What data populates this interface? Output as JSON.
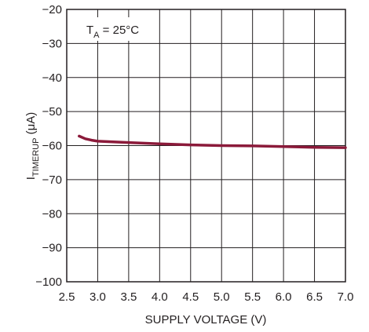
{
  "chart_data": {
    "type": "line",
    "xlabel": "SUPPLY VOLTAGE (V)",
    "ylabel_main": "I",
    "ylabel_sub": "TIMERUP",
    "ylabel_unit": " (μA)",
    "annotation_main": "T",
    "annotation_sub": "A",
    "annotation_rest": " = 25°C",
    "xlim": [
      2.5,
      7.0
    ],
    "ylim": [
      -100,
      -20
    ],
    "x_ticks": [
      2.5,
      3.0,
      3.5,
      4.0,
      4.5,
      5.0,
      5.5,
      6.0,
      6.5,
      7.0
    ],
    "x_tick_labels": [
      "2.5",
      "3.0",
      "3.5",
      "4.0",
      "4.5",
      "5.0",
      "5.5",
      "6.0",
      "6.5",
      "7.0"
    ],
    "y_ticks": [
      -20,
      -30,
      -40,
      -50,
      -60,
      -70,
      -80,
      -90,
      -100
    ],
    "y_tick_labels": [
      "−20",
      "−30",
      "−40",
      "−50",
      "−60",
      "−70",
      "−80",
      "−90",
      "−100"
    ],
    "grid": true,
    "line_color": "#8b1a3a",
    "series": [
      {
        "x": [
          2.7,
          2.8,
          2.9,
          3.0,
          3.5,
          4.0,
          4.5,
          5.0,
          5.5,
          6.0,
          6.5,
          7.0
        ],
        "y": [
          -57.2,
          -58.0,
          -58.4,
          -58.7,
          -59.1,
          -59.5,
          -59.8,
          -60.0,
          -60.1,
          -60.3,
          -60.5,
          -60.6
        ]
      }
    ]
  }
}
